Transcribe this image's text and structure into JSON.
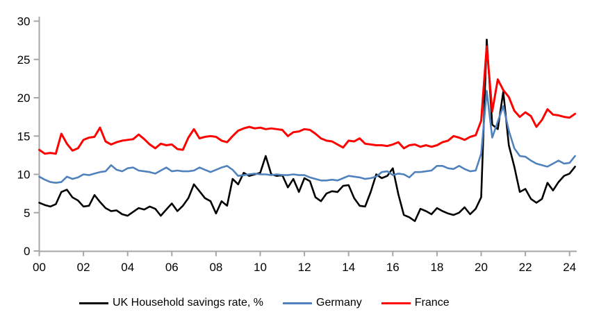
{
  "chart_data": {
    "type": "line",
    "title": "",
    "xlabel": "",
    "ylabel": "",
    "frequency": "quarterly",
    "x_start": 2000,
    "x_step_years": 0.25,
    "x_tick_labels": [
      "00",
      "02",
      "04",
      "06",
      "08",
      "10",
      "12",
      "14",
      "16",
      "18",
      "20",
      "22",
      "24"
    ],
    "y_tick_labels": [
      "0",
      "5",
      "10",
      "15",
      "20",
      "25",
      "30"
    ],
    "ylim": [
      0,
      30
    ],
    "grid": "off",
    "legend_position": "bottom",
    "axis_color": "#a6a6a6",
    "series": [
      {
        "name": "UK Household savings rate, %",
        "color": "#000000",
        "values": [
          6.3,
          6.0,
          5.8,
          6.1,
          7.7,
          8.0,
          7.0,
          6.6,
          5.8,
          5.9,
          7.3,
          6.4,
          5.6,
          5.2,
          5.3,
          4.8,
          4.6,
          5.1,
          5.6,
          5.4,
          5.8,
          5.5,
          4.6,
          5.4,
          6.2,
          5.2,
          5.9,
          6.9,
          8.7,
          7.8,
          6.9,
          6.5,
          4.9,
          6.5,
          5.9,
          9.4,
          8.7,
          10.2,
          9.8,
          10.0,
          10.2,
          12.4,
          10.0,
          9.8,
          9.9,
          8.3,
          9.4,
          7.7,
          9.5,
          9.1,
          7.0,
          6.5,
          7.5,
          7.8,
          7.7,
          8.5,
          8.6,
          6.9,
          5.9,
          5.8,
          7.7,
          10.0,
          9.5,
          9.8,
          10.8,
          7.4,
          4.7,
          4.4,
          3.9,
          5.5,
          5.2,
          4.8,
          5.6,
          5.2,
          4.9,
          4.7,
          5.0,
          5.7,
          4.8,
          5.5,
          7.0,
          27.6,
          16.5,
          15.9,
          20.8,
          13.8,
          11.0,
          7.7,
          8.1,
          6.8,
          6.3,
          6.8,
          8.9,
          7.9,
          9.0,
          9.8,
          10.1,
          11.0
        ]
      },
      {
        "name": "Germany",
        "color": "#4f81bd",
        "values": [
          9.7,
          9.3,
          9.0,
          8.9,
          9.0,
          9.7,
          9.4,
          9.6,
          10.0,
          9.9,
          10.1,
          10.3,
          10.4,
          11.2,
          10.6,
          10.4,
          10.8,
          10.9,
          10.5,
          10.4,
          10.3,
          10.1,
          10.5,
          10.9,
          10.4,
          10.5,
          10.4,
          10.4,
          10.5,
          10.9,
          10.6,
          10.3,
          10.6,
          10.9,
          11.1,
          10.6,
          9.8,
          9.9,
          10.0,
          10.1,
          10.0,
          10.0,
          9.9,
          10.0,
          9.9,
          9.9,
          10.0,
          9.9,
          9.9,
          9.6,
          9.4,
          9.2,
          9.2,
          9.3,
          9.2,
          9.5,
          9.8,
          9.7,
          9.6,
          9.4,
          9.5,
          9.7,
          10.3,
          10.4,
          9.9,
          10.1,
          10.0,
          9.6,
          10.3,
          10.3,
          10.4,
          10.5,
          11.1,
          11.1,
          10.8,
          10.7,
          11.1,
          10.7,
          10.4,
          10.5,
          12.7,
          20.9,
          14.8,
          16.9,
          18.9,
          15.7,
          13.4,
          12.4,
          12.3,
          11.8,
          11.4,
          11.2,
          11.0,
          11.4,
          11.8,
          11.4,
          11.5,
          12.4
        ]
      },
      {
        "name": "France",
        "color": "#ff0000",
        "values": [
          13.2,
          12.7,
          12.8,
          12.7,
          15.3,
          14.0,
          13.1,
          13.4,
          14.5,
          14.8,
          14.9,
          16.1,
          14.3,
          13.9,
          14.2,
          14.4,
          14.5,
          14.6,
          15.2,
          14.6,
          13.9,
          13.4,
          14.0,
          13.8,
          13.9,
          13.3,
          13.2,
          14.8,
          15.9,
          14.7,
          14.9,
          15.0,
          14.9,
          14.4,
          14.2,
          15.0,
          15.7,
          16.0,
          16.2,
          16.0,
          16.1,
          15.9,
          16.0,
          15.9,
          15.8,
          15.0,
          15.5,
          15.6,
          15.9,
          15.8,
          15.3,
          14.7,
          14.4,
          14.3,
          13.9,
          13.5,
          14.4,
          14.3,
          14.7,
          14.0,
          13.9,
          13.8,
          13.8,
          13.7,
          13.9,
          14.2,
          13.4,
          13.8,
          13.9,
          13.6,
          13.8,
          13.6,
          13.8,
          14.2,
          14.4,
          15.0,
          14.8,
          14.5,
          14.9,
          15.1,
          17.0,
          26.7,
          18.2,
          22.4,
          21.0,
          20.1,
          18.3,
          17.5,
          18.1,
          17.6,
          16.2,
          17.1,
          18.5,
          17.8,
          17.7,
          17.5,
          17.4,
          17.9
        ]
      }
    ]
  }
}
